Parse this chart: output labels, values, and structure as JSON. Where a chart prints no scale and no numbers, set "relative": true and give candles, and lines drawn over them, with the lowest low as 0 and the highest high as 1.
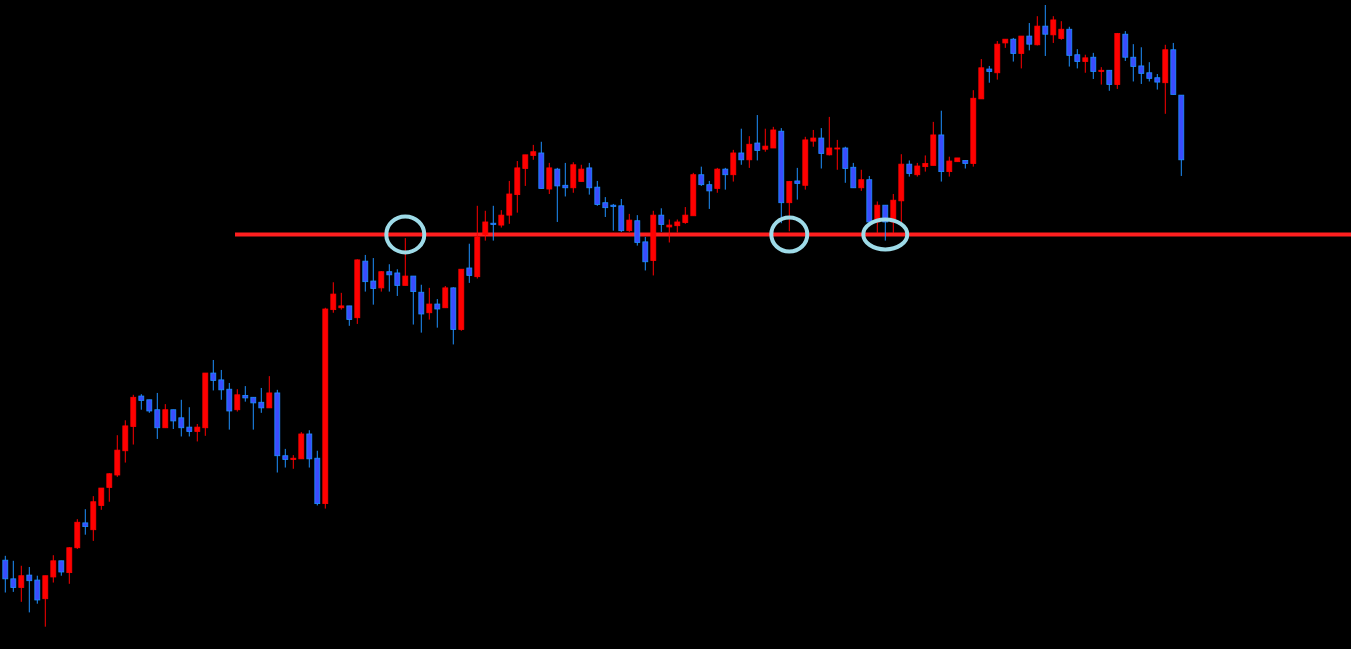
{
  "chart_data": {
    "type": "candlestick",
    "relative": true,
    "categories": [
      null,
      null,
      null,
      null,
      null,
      null,
      null,
      null,
      null,
      null,
      null,
      null,
      null,
      null,
      null,
      null,
      null,
      null,
      null,
      null,
      null,
      null,
      null,
      null,
      null,
      null,
      null,
      null,
      null,
      null,
      null,
      null,
      null,
      null,
      null,
      null,
      null,
      null,
      null,
      null,
      null,
      null,
      null,
      null,
      null,
      null,
      null,
      null,
      null,
      null,
      null,
      null,
      null,
      null,
      null,
      null,
      null,
      null,
      null,
      null,
      null,
      null,
      null,
      null,
      null,
      null,
      null,
      null,
      null,
      null,
      null,
      null,
      null,
      null,
      null,
      null,
      null,
      null,
      null,
      null,
      null,
      null,
      null,
      null,
      null,
      null,
      null,
      null,
      null,
      null,
      null,
      null,
      null,
      null,
      null,
      null,
      null,
      null,
      null,
      null,
      null,
      null,
      null,
      null,
      null,
      null,
      null,
      null,
      null,
      null,
      null,
      null,
      null,
      null,
      null,
      null,
      null,
      null,
      null,
      null,
      null,
      null,
      null,
      null,
      null,
      null,
      null,
      null,
      null,
      null,
      null,
      null,
      null,
      null,
      null,
      null,
      null,
      null,
      null,
      null,
      null,
      null,
      null,
      null,
      null,
      null,
      null,
      null
    ],
    "ohlc": [
      [
        0.107,
        0.114,
        0.055,
        0.077
      ],
      [
        0.077,
        0.106,
        0.056,
        0.063
      ],
      [
        0.063,
        0.098,
        0.04,
        0.082
      ],
      [
        0.083,
        0.096,
        0.023,
        0.074
      ],
      [
        0.075,
        0.082,
        0.037,
        0.043
      ],
      [
        0.045,
        0.082,
        0,
        0.082
      ],
      [
        0.08,
        0.115,
        0.071,
        0.106
      ],
      [
        0.106,
        0.106,
        0.082,
        0.088
      ],
      [
        0.087,
        0.128,
        0.069,
        0.127
      ],
      [
        0.127,
        0.173,
        0.125,
        0.168
      ],
      [
        0.167,
        0.189,
        0.148,
        0.161
      ],
      [
        0.156,
        0.21,
        0.138,
        0.201
      ],
      [
        0.195,
        0.223,
        0.188,
        0.223
      ],
      [
        0.224,
        0.247,
        0.201,
        0.246
      ],
      [
        0.244,
        0.308,
        0.241,
        0.284
      ],
      [
        0.283,
        0.332,
        0.264,
        0.323
      ],
      [
        0.322,
        0.373,
        0.293,
        0.369
      ],
      [
        0.371,
        0.374,
        0.349,
        0.364
      ],
      [
        0.365,
        0.365,
        0.344,
        0.347
      ],
      [
        0.349,
        0.376,
        0.302,
        0.32
      ],
      [
        0.32,
        0.358,
        0.32,
        0.349
      ],
      [
        0.349,
        0.349,
        0.318,
        0.331
      ],
      [
        0.336,
        0.365,
        0.306,
        0.32
      ],
      [
        0.321,
        0.353,
        0.306,
        0.314
      ],
      [
        0.314,
        0.326,
        0.298,
        0.321
      ],
      [
        0.32,
        0.408,
        0.307,
        0.408
      ],
      [
        0.408,
        0.429,
        0.38,
        0.396
      ],
      [
        0.397,
        0.413,
        0.365,
        0.381
      ],
      [
        0.382,
        0.392,
        0.317,
        0.347
      ],
      [
        0.349,
        0.382,
        0.346,
        0.373
      ],
      [
        0.372,
        0.387,
        0.362,
        0.368
      ],
      [
        0.369,
        0.369,
        0.317,
        0.36
      ],
      [
        0.361,
        0.384,
        0.344,
        0.352
      ],
      [
        0.352,
        0.403,
        0.352,
        0.376
      ],
      [
        0.376,
        0.381,
        0.248,
        0.275
      ],
      [
        0.275,
        0.286,
        0.256,
        0.269
      ],
      [
        0.269,
        0.276,
        0.254,
        0.271
      ],
      [
        0.27,
        0.313,
        0.27,
        0.31
      ],
      [
        0.31,
        0.316,
        0.256,
        0.27
      ],
      [
        0.271,
        0.283,
        0.195,
        0.198
      ],
      [
        0.198,
        0.513,
        0.19,
        0.511
      ],
      [
        0.51,
        0.554,
        0.505,
        0.535
      ],
      [
        0.513,
        0.537,
        0.51,
        0.516
      ],
      [
        0.516,
        0.516,
        0.484,
        0.494
      ],
      [
        0.497,
        0.591,
        0.487,
        0.59
      ],
      [
        0.588,
        0.598,
        0.539,
        0.555
      ],
      [
        0.556,
        0.593,
        0.518,
        0.544
      ],
      [
        0.545,
        0.572,
        0.539,
        0.571
      ],
      [
        0.571,
        0.583,
        0.539,
        0.566
      ],
      [
        0.569,
        0.575,
        0.532,
        0.549
      ],
      [
        0.549,
        0.625,
        0.549,
        0.564
      ],
      [
        0.564,
        0.564,
        0.486,
        0.539
      ],
      [
        0.538,
        0.55,
        0.473,
        0.503
      ],
      [
        0.505,
        0.545,
        0.494,
        0.519
      ],
      [
        0.519,
        0.527,
        0.481,
        0.511
      ],
      [
        0.513,
        0.548,
        0.513,
        0.545
      ],
      [
        0.545,
        0.546,
        0.454,
        0.478
      ],
      [
        0.478,
        0.575,
        0.476,
        0.575
      ],
      [
        0.577,
        0.616,
        0.553,
        0.565
      ],
      [
        0.563,
        0.677,
        0.56,
        0.627
      ],
      [
        0.631,
        0.669,
        0.621,
        0.651
      ],
      [
        0.649,
        0.677,
        0.621,
        0.647
      ],
      [
        0.646,
        0.67,
        0.642,
        0.662
      ],
      [
        0.662,
        0.717,
        0.648,
        0.696
      ],
      [
        0.695,
        0.749,
        0.666,
        0.738
      ],
      [
        0.737,
        0.759,
        0.709,
        0.759
      ],
      [
        0.758,
        0.775,
        0.751,
        0.764
      ],
      [
        0.762,
        0.78,
        0.705,
        0.705
      ],
      [
        0.704,
        0.746,
        0.696,
        0.738
      ],
      [
        0.736,
        0.738,
        0.651,
        0.709
      ],
      [
        0.71,
        0.746,
        0.692,
        0.706
      ],
      [
        0.706,
        0.747,
        0.698,
        0.743
      ],
      [
        0.716,
        0.743,
        0.716,
        0.736
      ],
      [
        0.738,
        0.746,
        0.695,
        0.706
      ],
      [
        0.707,
        0.717,
        0.677,
        0.679
      ],
      [
        0.682,
        0.691,
        0.659,
        0.674
      ],
      [
        0.678,
        0.68,
        0.637,
        0.676
      ],
      [
        0.677,
        0.688,
        0.635,
        0.637
      ],
      [
        0.637,
        0.664,
        0.635,
        0.654
      ],
      [
        0.653,
        0.662,
        0.613,
        0.618
      ],
      [
        0.619,
        0.627,
        0.573,
        0.587
      ],
      [
        0.589,
        0.669,
        0.565,
        0.662
      ],
      [
        0.662,
        0.673,
        0.635,
        0.647
      ],
      [
        0.643,
        0.655,
        0.618,
        0.646
      ],
      [
        0.645,
        0.655,
        0.634,
        0.651
      ],
      [
        0.65,
        0.675,
        0.648,
        0.662
      ],
      [
        0.661,
        0.73,
        0.661,
        0.727
      ],
      [
        0.727,
        0.74,
        0.709,
        0.711
      ],
      [
        0.711,
        0.717,
        0.672,
        0.701
      ],
      [
        0.705,
        0.738,
        0.698,
        0.736
      ],
      [
        0.736,
        0.738,
        0.703,
        0.727
      ],
      [
        0.727,
        0.767,
        0.716,
        0.762
      ],
      [
        0.762,
        0.801,
        0.743,
        0.751
      ],
      [
        0.751,
        0.789,
        0.738,
        0.776
      ],
      [
        0.778,
        0.823,
        0.75,
        0.766
      ],
      [
        0.768,
        0.801,
        0.764,
        0.773
      ],
      [
        0.77,
        0.804,
        0.77,
        0.799
      ],
      [
        0.797,
        0.802,
        0.649,
        0.682
      ],
      [
        0.682,
        0.717,
        0.636,
        0.716
      ],
      [
        0.717,
        0.738,
        0.687,
        0.713
      ],
      [
        0.71,
        0.788,
        0.703,
        0.783
      ],
      [
        0.781,
        0.799,
        0.772,
        0.786
      ],
      [
        0.786,
        0.802,
        0.737,
        0.761
      ],
      [
        0.759,
        0.82,
        0.758,
        0.77
      ],
      [
        0.769,
        0.783,
        0.735,
        0.77
      ],
      [
        0.77,
        0.772,
        0.714,
        0.737
      ],
      [
        0.739,
        0.746,
        0.706,
        0.706
      ],
      [
        0.706,
        0.735,
        0.701,
        0.719
      ],
      [
        0.719,
        0.725,
        0.651,
        0.651
      ],
      [
        0.651,
        0.684,
        0.633,
        0.678
      ],
      [
        0.678,
        0.678,
        0.621,
        0.651
      ],
      [
        0.651,
        0.696,
        0.633,
        0.686
      ],
      [
        0.685,
        0.76,
        0.651,
        0.744
      ],
      [
        0.744,
        0.75,
        0.724,
        0.729
      ],
      [
        0.727,
        0.746,
        0.724,
        0.741
      ],
      [
        0.74,
        0.758,
        0.732,
        0.745
      ],
      [
        0.742,
        0.812,
        0.742,
        0.791
      ],
      [
        0.791,
        0.83,
        0.716,
        0.732
      ],
      [
        0.732,
        0.756,
        0.724,
        0.749
      ],
      [
        0.748,
        0.754,
        0.748,
        0.754
      ],
      [
        0.75,
        0.75,
        0.737,
        0.745
      ],
      [
        0.745,
        0.863,
        0.74,
        0.85
      ],
      [
        0.849,
        0.913,
        0.849,
        0.899
      ],
      [
        0.897,
        0.902,
        0.875,
        0.893
      ],
      [
        0.891,
        0.942,
        0.88,
        0.937
      ],
      [
        0.939,
        0.945,
        0.931,
        0.945
      ],
      [
        0.945,
        0.947,
        0.909,
        0.922
      ],
      [
        0.922,
        0.95,
        0.898,
        0.95
      ],
      [
        0.95,
        0.971,
        0.927,
        0.937
      ],
      [
        0.936,
        0.982,
        0.935,
        0.966
      ],
      [
        0.966,
        1,
        0.918,
        0.953
      ],
      [
        0.952,
        0.982,
        0.939,
        0.976
      ],
      [
        0.946,
        0.974,
        0.944,
        0.961
      ],
      [
        0.961,
        0.965,
        0.901,
        0.919
      ],
      [
        0.92,
        0.929,
        0.898,
        0.909
      ],
      [
        0.909,
        0.92,
        0.891,
        0.915
      ],
      [
        0.916,
        0.923,
        0.881,
        0.893
      ],
      [
        0.893,
        0.9,
        0.872,
        0.895
      ],
      [
        0.895,
        0.895,
        0.862,
        0.872
      ],
      [
        0.872,
        0.955,
        0.865,
        0.954
      ],
      [
        0.953,
        0.958,
        0.91,
        0.916
      ],
      [
        0.916,
        0.937,
        0.877,
        0.901
      ],
      [
        0.902,
        0.932,
        0.873,
        0.89
      ],
      [
        0.891,
        0.908,
        0.877,
        0.882
      ],
      [
        0.883,
        0.889,
        0.864,
        0.876
      ],
      [
        0.875,
        0.936,
        0.825,
        0.928
      ],
      [
        0.928,
        0.939,
        0.856,
        0.856
      ],
      [
        0.855,
        0.855,
        0.725,
        0.751
      ]
    ],
    "ref_lines": [
      {
        "axis": "y",
        "value": 0.631,
        "color": "#ff1f1f"
      }
    ]
  }
}
